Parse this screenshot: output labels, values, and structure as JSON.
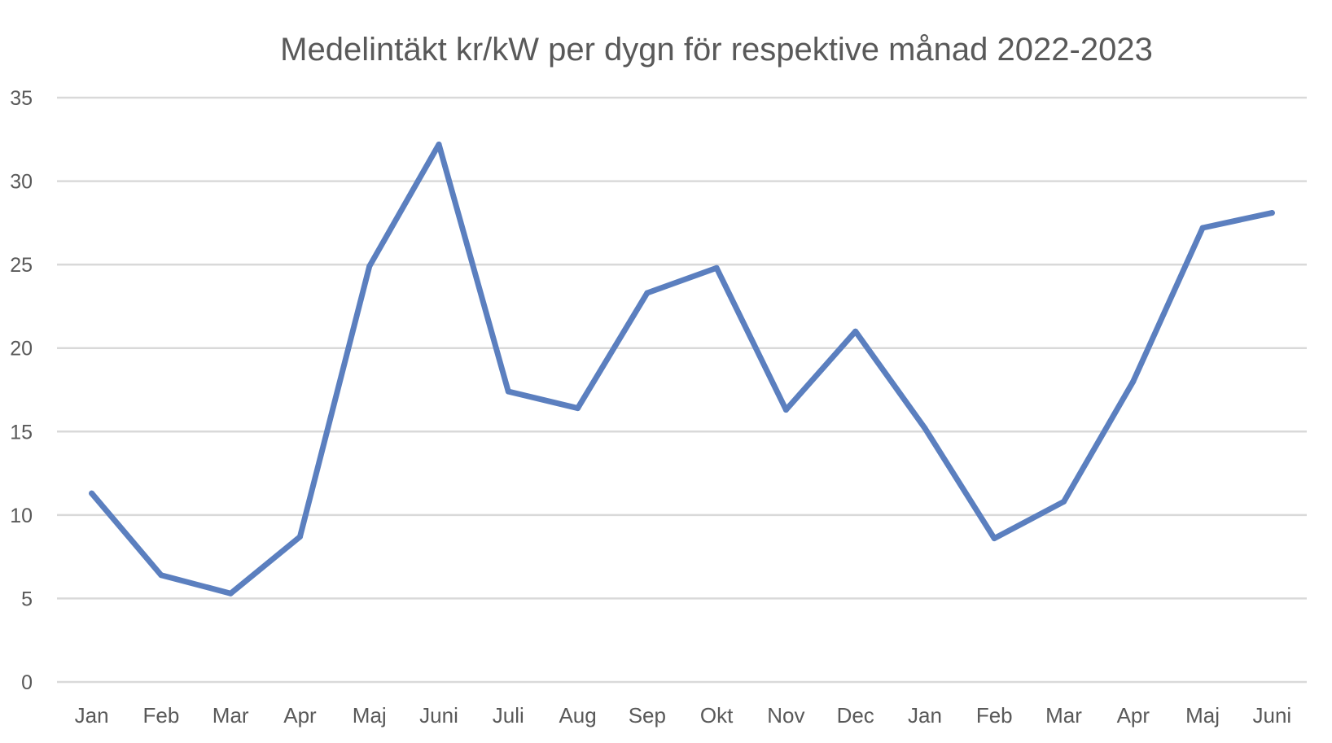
{
  "chart_data": {
    "type": "line",
    "title": "Medelintäkt kr/kW per dygn för respektive månad 2022-2023",
    "xlabel": "",
    "ylabel": "",
    "categories": [
      "Jan",
      "Feb",
      "Mar",
      "Apr",
      "Maj",
      "Juni",
      "Juli",
      "Aug",
      "Sep",
      "Okt",
      "Nov",
      "Dec",
      "Jan",
      "Feb",
      "Mar",
      "Apr",
      "Maj",
      "Juni"
    ],
    "series": [
      {
        "values": [
          11.3,
          6.4,
          5.3,
          8.7,
          24.9,
          32.2,
          17.4,
          16.4,
          23.3,
          24.8,
          16.3,
          21.0,
          15.2,
          8.6,
          10.8,
          18.0,
          27.2,
          28.1
        ],
        "color": "#5B7FBF"
      }
    ],
    "ylim": [
      0,
      35
    ],
    "yticks": [
      0,
      5,
      10,
      15,
      20,
      25,
      30,
      35
    ],
    "grid": true,
    "legend": "none"
  }
}
